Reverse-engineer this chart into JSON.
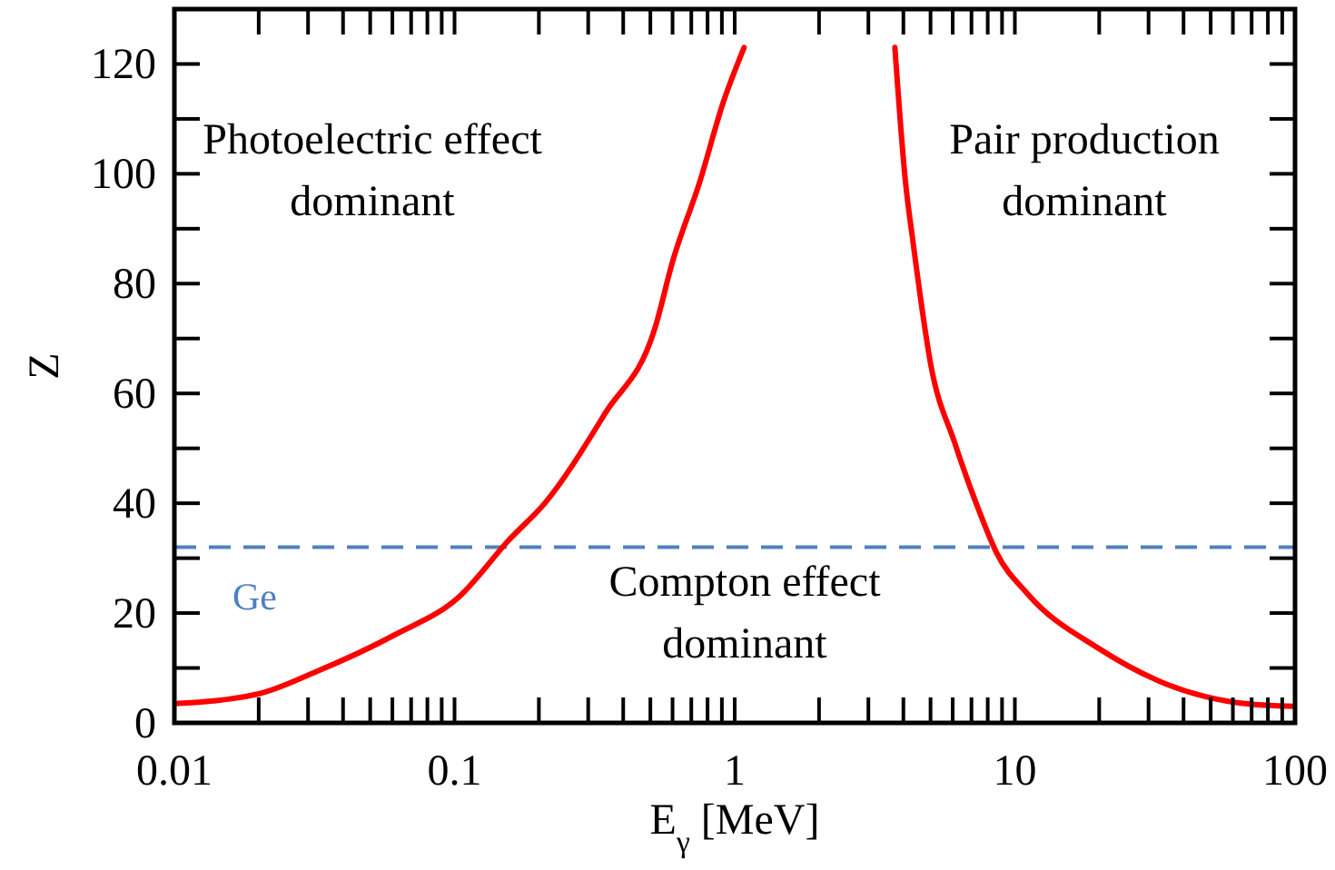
{
  "chart_data": {
    "type": "line",
    "xlabel": "E$_{γ}$ [MeV]",
    "ylabel": "Z",
    "log": "x",
    "xlim": [
      0.01,
      100
    ],
    "ylim": [
      0,
      130
    ],
    "xticks": [
      0.01,
      {
        "value": 0.02,
        "label": null
      },
      {
        "value": 0.03,
        "label": null
      },
      {
        "value": 0.04,
        "label": null
      },
      {
        "value": 0.05,
        "label": null
      },
      {
        "value": 0.06,
        "label": null
      },
      {
        "value": 0.07,
        "label": null
      },
      {
        "value": 0.08,
        "label": null
      },
      {
        "value": 0.09,
        "label": null
      },
      0.1,
      {
        "value": 0.2,
        "label": null
      },
      {
        "value": 0.3,
        "label": null
      },
      {
        "value": 0.4,
        "label": null
      },
      {
        "value": 0.5,
        "label": null
      },
      {
        "value": 0.6,
        "label": null
      },
      {
        "value": 0.7,
        "label": null
      },
      {
        "value": 0.8,
        "label": null
      },
      {
        "value": 0.9,
        "label": null
      },
      1,
      {
        "value": 2,
        "label": null
      },
      {
        "value": 3,
        "label": null
      },
      {
        "value": 4,
        "label": null
      },
      {
        "value": 5,
        "label": null
      },
      {
        "value": 6,
        "label": null
      },
      {
        "value": 7,
        "label": null
      },
      {
        "value": 8,
        "label": null
      },
      {
        "value": 9,
        "label": null
      },
      10,
      {
        "value": 20,
        "label": null
      },
      {
        "value": 30,
        "label": null
      },
      {
        "value": 40,
        "label": null
      },
      {
        "value": 50,
        "label": null
      },
      {
        "value": 60,
        "label": null
      },
      {
        "value": 70,
        "label": null
      },
      {
        "value": 80,
        "label": null
      },
      {
        "value": 90,
        "label": null
      },
      100
    ],
    "yticks": [
      0,
      {
        "value": 10,
        "label": null
      },
      20,
      {
        "value": 30,
        "label": null
      },
      40,
      {
        "value": 50,
        "label": null
      },
      60,
      {
        "value": 70,
        "label": null
      },
      80,
      {
        "value": 90,
        "label": null
      },
      100,
      {
        "value": 110,
        "label": null
      },
      120
    ],
    "grid": false,
    "marker": "none",
    "line_style": "solid",
    "series": [
      {
        "color": "#ff0000",
        "x": [
          0.01,
          0.02,
          0.032,
          0.061,
          0.104,
          0.157,
          0.21,
          0.346,
          0.52,
          0.6,
          0.75,
          0.91,
          1.08
        ],
        "values": [
          3.5,
          5.3,
          9.3,
          16,
          23,
          33.4,
          40,
          56.5,
          72,
          84,
          98.5,
          113,
          123
        ]
      },
      {
        "color": "#ff0000",
        "x": [
          3.73,
          4.07,
          4.33,
          5.02,
          6.1,
          7.4,
          8.6,
          11.1,
          20,
          35,
          64,
          100
        ],
        "values": [
          123,
          98.5,
          87.6,
          65,
          51,
          39,
          31,
          23.5,
          13.5,
          7,
          3.6,
          3
        ]
      }
    ],
    "ref_lines": [
      {
        "axis": "y",
        "value": 32,
        "label": "Ge",
        "color": "#4f81bd",
        "line_style": "dashed"
      }
    ],
    "annotations": [
      "Photoelectric effect\ndominant",
      "Pair production\ndominant",
      "Compton effect\ndominant"
    ]
  }
}
